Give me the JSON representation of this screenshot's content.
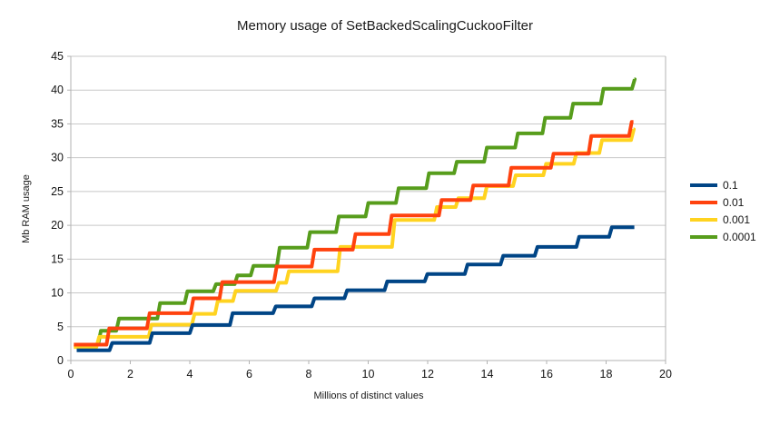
{
  "chart_data": {
    "type": "line",
    "subtype": "step",
    "title": "Memory usage of SetBackedScalingCuckooFilter",
    "xlabel": "Millions of distinct values",
    "ylabel": "Mb RAM usage",
    "xlim": [
      0,
      20
    ],
    "ylim": [
      0,
      45
    ],
    "x_ticks": [
      0,
      2,
      4,
      6,
      8,
      10,
      12,
      14,
      16,
      18,
      20
    ],
    "y_ticks": [
      0,
      5,
      10,
      15,
      20,
      25,
      30,
      35,
      40,
      45
    ],
    "grid": "horizontal-only",
    "grid_color": "#c8c8c8",
    "axis_color": "#b3b3b3",
    "legend_position": "right",
    "series": [
      {
        "name": "0.0001",
        "color": "#579d1c",
        "x_end": 18.95,
        "points": [
          [
            0.15,
            2.35
          ],
          [
            0.92,
            4.4
          ],
          [
            1.53,
            6.2
          ],
          [
            2.91,
            8.5
          ],
          [
            3.83,
            10.25
          ],
          [
            4.79,
            11.3
          ],
          [
            5.51,
            12.6
          ],
          [
            6.05,
            14.0
          ],
          [
            6.93,
            16.7
          ],
          [
            7.95,
            19.0
          ],
          [
            8.92,
            21.3
          ],
          [
            9.91,
            23.3
          ],
          [
            10.93,
            25.5
          ],
          [
            11.95,
            27.7
          ],
          [
            12.89,
            29.4
          ],
          [
            13.9,
            31.5
          ],
          [
            14.94,
            33.6
          ],
          [
            15.86,
            35.9
          ],
          [
            16.8,
            38.0
          ],
          [
            17.82,
            40.2
          ],
          [
            18.87,
            41.6
          ]
        ]
      },
      {
        "name": "0.001",
        "color": "#ffd320",
        "x_end": 18.92,
        "points": [
          [
            0.1,
            2.0
          ],
          [
            0.86,
            3.5
          ],
          [
            2.62,
            5.3
          ],
          [
            4.07,
            6.9
          ],
          [
            4.85,
            8.8
          ],
          [
            5.45,
            10.3
          ],
          [
            6.9,
            11.5
          ],
          [
            7.24,
            13.2
          ],
          [
            8.97,
            16.8
          ],
          [
            10.8,
            20.8
          ],
          [
            12.22,
            22.7
          ],
          [
            12.94,
            24.0
          ],
          [
            13.9,
            25.8
          ],
          [
            14.87,
            27.4
          ],
          [
            15.89,
            29.1
          ],
          [
            16.91,
            30.7
          ],
          [
            17.77,
            32.6
          ],
          [
            18.84,
            34.2
          ]
        ]
      },
      {
        "name": "0.01",
        "color": "#ff420e",
        "x_end": 18.92,
        "points": [
          [
            0.1,
            2.35
          ],
          [
            1.2,
            4.75
          ],
          [
            2.56,
            7.0
          ],
          [
            4.03,
            9.2
          ],
          [
            5.0,
            11.6
          ],
          [
            6.83,
            13.9
          ],
          [
            8.1,
            16.4
          ],
          [
            9.48,
            18.7
          ],
          [
            10.7,
            21.45
          ],
          [
            12.38,
            23.75
          ],
          [
            13.44,
            25.9
          ],
          [
            14.72,
            28.5
          ],
          [
            16.14,
            30.6
          ],
          [
            17.41,
            33.2
          ],
          [
            18.77,
            35.3
          ]
        ]
      },
      {
        "name": "0.1",
        "color": "#004586",
        "x_end": 18.95,
        "points": [
          [
            0.2,
            1.5
          ],
          [
            1.3,
            2.6
          ],
          [
            2.65,
            4.05
          ],
          [
            4.0,
            5.25
          ],
          [
            5.35,
            7.0
          ],
          [
            6.8,
            8.0
          ],
          [
            8.1,
            9.2
          ],
          [
            9.2,
            10.4
          ],
          [
            10.55,
            11.7
          ],
          [
            11.9,
            12.8
          ],
          [
            13.25,
            14.2
          ],
          [
            14.45,
            15.5
          ],
          [
            15.6,
            16.8
          ],
          [
            17.0,
            18.3
          ],
          [
            18.1,
            19.7
          ]
        ]
      }
    ],
    "legend_order": [
      "0.1",
      "0.01",
      "0.001",
      "0.0001"
    ]
  }
}
